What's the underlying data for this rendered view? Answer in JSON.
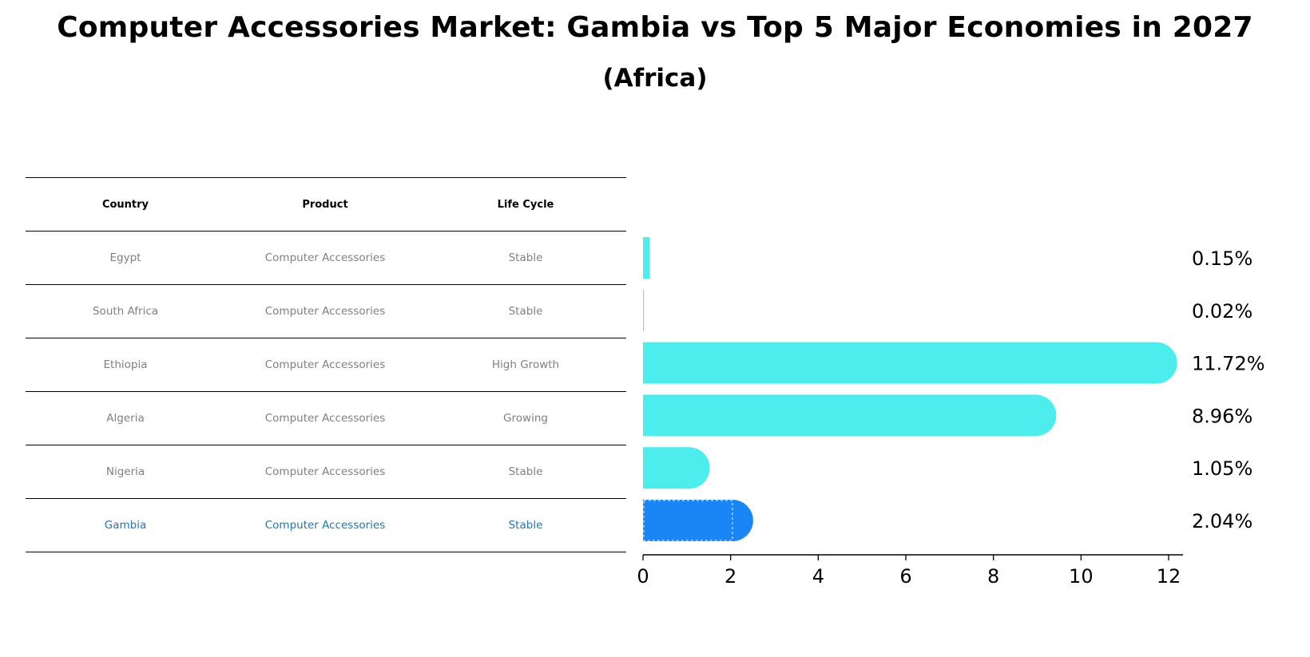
{
  "title": "Computer Accessories Market: Gambia vs Top 5 Major Economies in 2027",
  "subtitle": "(Africa)",
  "table": {
    "headers": [
      "Country",
      "Product",
      "Life Cycle"
    ],
    "rows": [
      {
        "country": "Egypt",
        "product": "Computer Accessories",
        "life_cycle": "Stable"
      },
      {
        "country": "South Africa",
        "product": "Computer Accessories",
        "life_cycle": "Stable"
      },
      {
        "country": "Ethiopia",
        "product": "Computer Accessories",
        "life_cycle": "High Growth"
      },
      {
        "country": "Algeria",
        "product": "Computer Accessories",
        "life_cycle": "Growing"
      },
      {
        "country": "Nigeria",
        "product": "Computer Accessories",
        "life_cycle": "Stable"
      },
      {
        "country": "Gambia",
        "product": "Computer Accessories",
        "life_cycle": "Stable"
      }
    ]
  },
  "chart_data": {
    "type": "bar",
    "orientation": "horizontal",
    "categories": [
      "Egypt",
      "South Africa",
      "Ethiopia",
      "Algeria",
      "Nigeria",
      "Gambia"
    ],
    "values": [
      0.15,
      0.02,
      11.72,
      8.96,
      1.05,
      2.04
    ],
    "value_labels": [
      "0.15%",
      "0.02%",
      "11.72%",
      "8.96%",
      "1.05%",
      "2.04%"
    ],
    "highlight": "Gambia",
    "xlim": [
      0,
      12.3
    ],
    "xticks": [
      0,
      2,
      4,
      6,
      8,
      10,
      12
    ],
    "grid": false,
    "colors": {
      "default": "#4deded",
      "highlight": "#1a86f5",
      "highlight_text": "#1f77b4"
    }
  }
}
